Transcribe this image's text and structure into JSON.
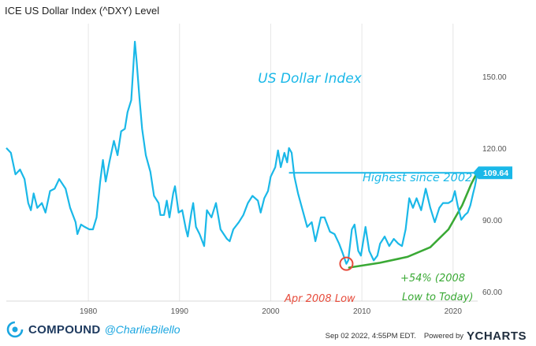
{
  "title": "ICE US Dollar Index (^DXY) Level",
  "chart_data": {
    "type": "line",
    "title": "ICE US Dollar Index (^DXY) Level",
    "xlim": [
      1971.0,
      2022.7
    ],
    "ylim": [
      56.0,
      172.0
    ],
    "x_ticks": [
      {
        "value": 1980,
        "label": "1980"
      },
      {
        "value": 1990,
        "label": "1990"
      },
      {
        "value": 2000,
        "label": "2000"
      },
      {
        "value": 2010,
        "label": "2010"
      },
      {
        "value": 2020,
        "label": "2020"
      }
    ],
    "y_ticks": [
      {
        "value": 60,
        "label": "60.00"
      },
      {
        "value": 90,
        "label": "90.00"
      },
      {
        "value": 120,
        "label": "120.00"
      },
      {
        "value": 150,
        "label": "150.00"
      }
    ],
    "grid": {
      "x": true,
      "y": false
    },
    "series": [
      {
        "color": "#1ab8e8",
        "points": [
          [
            1971.0,
            120.0
          ],
          [
            1971.5,
            118.0
          ],
          [
            1972.0,
            109.0
          ],
          [
            1972.5,
            111.0
          ],
          [
            1973.0,
            107.0
          ],
          [
            1973.4,
            97.0
          ],
          [
            1973.7,
            94.0
          ],
          [
            1974.0,
            101.0
          ],
          [
            1974.4,
            95.0
          ],
          [
            1974.9,
            97.0
          ],
          [
            1975.3,
            93.0
          ],
          [
            1975.8,
            102.0
          ],
          [
            1976.3,
            103.0
          ],
          [
            1976.8,
            107.0
          ],
          [
            1977.5,
            103.0
          ],
          [
            1978.0,
            95.0
          ],
          [
            1978.6,
            89.0
          ],
          [
            1978.8,
            84.0
          ],
          [
            1979.2,
            88.0
          ],
          [
            1979.6,
            87.0
          ],
          [
            1980.1,
            86.0
          ],
          [
            1980.5,
            86.0
          ],
          [
            1980.9,
            91.0
          ],
          [
            1981.3,
            106.0
          ],
          [
            1981.6,
            115.0
          ],
          [
            1981.9,
            106.0
          ],
          [
            1982.3,
            114.0
          ],
          [
            1982.8,
            123.0
          ],
          [
            1983.2,
            117.0
          ],
          [
            1983.6,
            127.0
          ],
          [
            1984.0,
            128.0
          ],
          [
            1984.3,
            135.0
          ],
          [
            1984.7,
            140.0
          ],
          [
            1985.0,
            158.0
          ],
          [
            1985.1,
            164.5
          ],
          [
            1985.3,
            156.0
          ],
          [
            1985.6,
            141.0
          ],
          [
            1985.9,
            128.0
          ],
          [
            1986.3,
            117.0
          ],
          [
            1986.8,
            110.0
          ],
          [
            1987.2,
            100.0
          ],
          [
            1987.7,
            97.0
          ],
          [
            1987.9,
            92.0
          ],
          [
            1988.3,
            92.0
          ],
          [
            1988.6,
            98.0
          ],
          [
            1988.9,
            91.0
          ],
          [
            1989.3,
            101.0
          ],
          [
            1989.5,
            104.0
          ],
          [
            1989.9,
            93.0
          ],
          [
            1990.3,
            94.0
          ],
          [
            1990.7,
            86.0
          ],
          [
            1990.9,
            83.0
          ],
          [
            1991.3,
            93.0
          ],
          [
            1991.5,
            97.0
          ],
          [
            1991.8,
            87.0
          ],
          [
            1992.2,
            84.0
          ],
          [
            1992.7,
            79.0
          ],
          [
            1993.0,
            94.0
          ],
          [
            1993.5,
            91.0
          ],
          [
            1994.0,
            97.0
          ],
          [
            1994.5,
            86.0
          ],
          [
            1995.2,
            82.0
          ],
          [
            1995.5,
            81.0
          ],
          [
            1995.9,
            86.0
          ],
          [
            1996.5,
            89.0
          ],
          [
            1997.0,
            92.0
          ],
          [
            1997.5,
            97.0
          ],
          [
            1998.0,
            100.0
          ],
          [
            1998.6,
            98.0
          ],
          [
            1998.9,
            93.0
          ],
          [
            1999.3,
            99.0
          ],
          [
            1999.7,
            102.0
          ],
          [
            2000.0,
            108.0
          ],
          [
            2000.5,
            112.0
          ],
          [
            2000.8,
            119.0
          ],
          [
            2001.1,
            112.0
          ],
          [
            2001.5,
            118.0
          ],
          [
            2001.8,
            114.0
          ],
          [
            2002.0,
            120.0
          ],
          [
            2002.3,
            118.0
          ],
          [
            2002.6,
            108.0
          ],
          [
            2003.0,
            101.0
          ],
          [
            2003.5,
            94.0
          ],
          [
            2004.0,
            87.0
          ],
          [
            2004.5,
            89.0
          ],
          [
            2004.9,
            81.0
          ],
          [
            2005.5,
            91.0
          ],
          [
            2005.9,
            91.0
          ],
          [
            2006.5,
            85.0
          ],
          [
            2007.0,
            84.0
          ],
          [
            2007.5,
            80.0
          ],
          [
            2007.9,
            76.0
          ],
          [
            2008.3,
            71.6
          ],
          [
            2008.5,
            73.0
          ],
          [
            2008.9,
            86.0
          ],
          [
            2009.2,
            88.0
          ],
          [
            2009.6,
            77.0
          ],
          [
            2009.9,
            75.0
          ],
          [
            2010.4,
            87.0
          ],
          [
            2010.8,
            77.0
          ],
          [
            2011.3,
            73.0
          ],
          [
            2011.7,
            75.0
          ],
          [
            2012.0,
            80.0
          ],
          [
            2012.5,
            83.0
          ],
          [
            2013.0,
            79.0
          ],
          [
            2013.5,
            82.0
          ],
          [
            2014.0,
            80.0
          ],
          [
            2014.4,
            79.0
          ],
          [
            2014.8,
            86.0
          ],
          [
            2015.2,
            99.0
          ],
          [
            2015.6,
            95.0
          ],
          [
            2016.0,
            99.0
          ],
          [
            2016.5,
            94.0
          ],
          [
            2017.0,
            103.0
          ],
          [
            2017.5,
            95.0
          ],
          [
            2018.0,
            89.0
          ],
          [
            2018.5,
            95.0
          ],
          [
            2018.9,
            97.0
          ],
          [
            2019.5,
            97.0
          ],
          [
            2019.9,
            98.0
          ],
          [
            2020.2,
            102.0
          ],
          [
            2020.5,
            96.0
          ],
          [
            2020.9,
            90.0
          ],
          [
            2021.3,
            92.0
          ],
          [
            2021.6,
            93.0
          ],
          [
            2021.9,
            96.0
          ],
          [
            2022.2,
            101.0
          ],
          [
            2022.4,
            104.0
          ],
          [
            2022.67,
            109.64
          ]
        ]
      }
    ],
    "last_value": {
      "value": 109.64,
      "label": "109.64",
      "color": "#1ab8e8"
    },
    "annotations": {
      "chart_label": {
        "text": "US Dollar Index",
        "color": "#1ab8e8"
      },
      "highest": {
        "text": "Highest since 2002",
        "color": "#1ab8e8",
        "x_from": 2002.0,
        "x_to": 2022.67,
        "y": 109.64
      },
      "low": {
        "text": "Apr 2008 Low",
        "color": "#e74c3c",
        "x": 2008.3,
        "y": 71.6
      },
      "gain": {
        "line1": "+54% (2008",
        "line2": "Low to Today)",
        "color": "#3aa935",
        "curve": [
          [
            2008.6,
            70.0
          ],
          [
            2012.0,
            72.0
          ],
          [
            2015.0,
            74.5
          ],
          [
            2017.5,
            78.5
          ],
          [
            2019.5,
            86.0
          ],
          [
            2021.0,
            96.0
          ],
          [
            2022.0,
            105.0
          ],
          [
            2022.62,
            109.6
          ]
        ]
      }
    }
  },
  "footer": {
    "brand": "COMPOUND",
    "handle": "@CharlieBilello",
    "timestamp": "Sep 02 2022, 4:55PM EDT.",
    "powered_by": "Powered by",
    "logo_text": "YCHARTS"
  }
}
